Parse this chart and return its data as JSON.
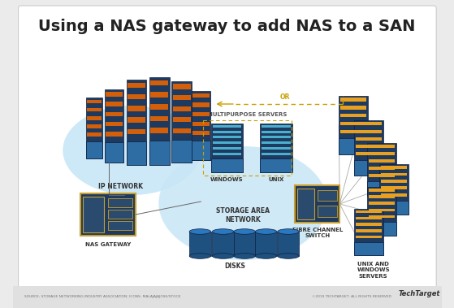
{
  "title": "Using a NAS gateway to add NAS to a SAN",
  "title_fontsize": 14,
  "title_fontweight": "bold",
  "bg_color": "#ebebeb",
  "main_bg": "#ffffff",
  "dark_blue": "#1e3a5f",
  "mid_blue": "#2e6da4",
  "light_blue": "#3a8abf",
  "light_blue_cloud": "#c8e6f5",
  "orange_stripe": "#d45f0a",
  "yellow_stripe": "#e8a020",
  "cyan_stripe": "#4ab0d0",
  "gray_line": "#999999",
  "dotted_color": "#c8a000",
  "footer_text_left": "SOURCE: STORAGE NETWORKING INDUSTRY ASSOCIATION; ICONS: MALAJAJAJOSE/STOCK",
  "footer_text_right": "©2019 TECHTARGET, ALL RIGHTS RESERVED",
  "footer_brand": "TechTarget"
}
